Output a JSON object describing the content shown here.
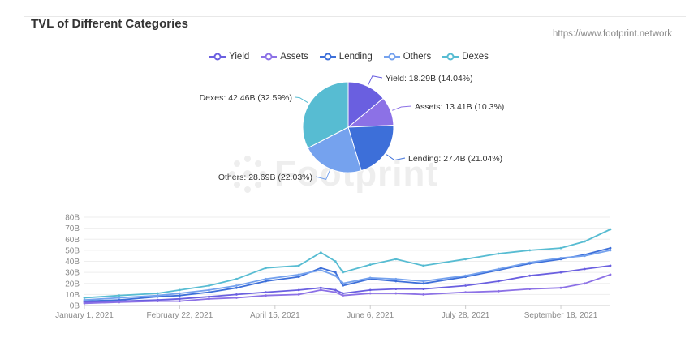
{
  "header": {
    "title": "TVL of Different Categories",
    "source": "https://www.footprint.network"
  },
  "watermark": {
    "text": "Footprint"
  },
  "chart_data": [
    {
      "type": "pie",
      "legend_position": "top-center",
      "slices": [
        {
          "name": "Yield",
          "value": 18.29,
          "label": "Yield: 18.29B (14.04%)",
          "color": "#6a5fe0"
        },
        {
          "name": "Assets",
          "value": 13.41,
          "label": "Assets: 13.41B (10.3%)",
          "color": "#8c71e6"
        },
        {
          "name": "Lending",
          "value": 27.4,
          "label": "Lending: 27.4B (21.04%)",
          "color": "#3d6fd9"
        },
        {
          "name": "Others",
          "value": 28.69,
          "label": "Others: 28.69B (22.03%)",
          "color": "#75a2ee"
        },
        {
          "name": "Dexes",
          "value": 42.46,
          "label": "Dexes: 42.46B (32.59%)",
          "color": "#57bcd2"
        }
      ]
    },
    {
      "type": "line",
      "x_start": "2021-01-01",
      "x_end": "2021-10-15",
      "x_ticks": [
        {
          "date": "2021-01-01",
          "label": "January 1, 2021"
        },
        {
          "date": "2021-02-22",
          "label": "February 22, 2021"
        },
        {
          "date": "2021-04-15",
          "label": "April 15, 2021"
        },
        {
          "date": "2021-06-06",
          "label": "June 6, 2021"
        },
        {
          "date": "2021-07-28",
          "label": "July 28, 2021"
        },
        {
          "date": "2021-09-18",
          "label": "September 18, 2021"
        }
      ],
      "y_ticks": [
        "0B",
        "10B",
        "20B",
        "30B",
        "40B",
        "50B",
        "60B",
        "70B",
        "80B"
      ],
      "ylim": [
        0,
        80
      ],
      "grid": true,
      "series": [
        {
          "name": "Dexes",
          "color": "#57bcd2",
          "points": [
            [
              "2021-01-01",
              7
            ],
            [
              "2021-01-20",
              9
            ],
            [
              "2021-02-10",
              11
            ],
            [
              "2021-02-22",
              14
            ],
            [
              "2021-03-10",
              18
            ],
            [
              "2021-03-25",
              24
            ],
            [
              "2021-04-10",
              34
            ],
            [
              "2021-04-28",
              36
            ],
            [
              "2021-05-10",
              48
            ],
            [
              "2021-05-18",
              40
            ],
            [
              "2021-05-22",
              30
            ],
            [
              "2021-06-06",
              37
            ],
            [
              "2021-06-20",
              42
            ],
            [
              "2021-07-05",
              36
            ],
            [
              "2021-07-28",
              42
            ],
            [
              "2021-08-15",
              47
            ],
            [
              "2021-09-01",
              50
            ],
            [
              "2021-09-18",
              52
            ],
            [
              "2021-10-01",
              58
            ],
            [
              "2021-10-15",
              69
            ]
          ]
        },
        {
          "name": "Lending",
          "color": "#3d6fd9",
          "points": [
            [
              "2021-01-01",
              4
            ],
            [
              "2021-01-20",
              5
            ],
            [
              "2021-02-10",
              8
            ],
            [
              "2021-02-22",
              9
            ],
            [
              "2021-03-10",
              12
            ],
            [
              "2021-03-25",
              16
            ],
            [
              "2021-04-10",
              22
            ],
            [
              "2021-04-28",
              26
            ],
            [
              "2021-05-10",
              34
            ],
            [
              "2021-05-18",
              30
            ],
            [
              "2021-05-22",
              18
            ],
            [
              "2021-06-06",
              24
            ],
            [
              "2021-06-20",
              22
            ],
            [
              "2021-07-05",
              20
            ],
            [
              "2021-07-28",
              26
            ],
            [
              "2021-08-15",
              32
            ],
            [
              "2021-09-01",
              38
            ],
            [
              "2021-09-18",
              42
            ],
            [
              "2021-10-01",
              46
            ],
            [
              "2021-10-15",
              52
            ]
          ]
        },
        {
          "name": "Others",
          "color": "#75a2ee",
          "points": [
            [
              "2021-01-01",
              5
            ],
            [
              "2021-01-20",
              7
            ],
            [
              "2021-02-10",
              9
            ],
            [
              "2021-02-22",
              11
            ],
            [
              "2021-03-10",
              14
            ],
            [
              "2021-03-25",
              18
            ],
            [
              "2021-04-10",
              24
            ],
            [
              "2021-04-28",
              28
            ],
            [
              "2021-05-10",
              32
            ],
            [
              "2021-05-18",
              27
            ],
            [
              "2021-05-22",
              20
            ],
            [
              "2021-06-06",
              25
            ],
            [
              "2021-06-20",
              24
            ],
            [
              "2021-07-05",
              22
            ],
            [
              "2021-07-28",
              27
            ],
            [
              "2021-08-15",
              33
            ],
            [
              "2021-09-01",
              39
            ],
            [
              "2021-09-18",
              43
            ],
            [
              "2021-10-01",
              45
            ],
            [
              "2021-10-15",
              50
            ]
          ]
        },
        {
          "name": "Yield",
          "color": "#6a5fe0",
          "points": [
            [
              "2021-01-01",
              3
            ],
            [
              "2021-01-20",
              4
            ],
            [
              "2021-02-10",
              5
            ],
            [
              "2021-02-22",
              6
            ],
            [
              "2021-03-10",
              8
            ],
            [
              "2021-03-25",
              10
            ],
            [
              "2021-04-10",
              12
            ],
            [
              "2021-04-28",
              14
            ],
            [
              "2021-05-10",
              16
            ],
            [
              "2021-05-18",
              14
            ],
            [
              "2021-05-22",
              11
            ],
            [
              "2021-06-06",
              14
            ],
            [
              "2021-06-20",
              15
            ],
            [
              "2021-07-05",
              15
            ],
            [
              "2021-07-28",
              18
            ],
            [
              "2021-08-15",
              22
            ],
            [
              "2021-09-01",
              27
            ],
            [
              "2021-09-18",
              30
            ],
            [
              "2021-10-01",
              33
            ],
            [
              "2021-10-15",
              36
            ]
          ]
        },
        {
          "name": "Assets",
          "color": "#8c71e6",
          "points": [
            [
              "2021-01-01",
              2
            ],
            [
              "2021-01-20",
              3
            ],
            [
              "2021-02-10",
              4
            ],
            [
              "2021-02-22",
              4
            ],
            [
              "2021-03-10",
              6
            ],
            [
              "2021-03-25",
              7
            ],
            [
              "2021-04-10",
              9
            ],
            [
              "2021-04-28",
              10
            ],
            [
              "2021-05-10",
              14
            ],
            [
              "2021-05-18",
              12
            ],
            [
              "2021-05-22",
              9
            ],
            [
              "2021-06-06",
              11
            ],
            [
              "2021-06-20",
              11
            ],
            [
              "2021-07-05",
              10
            ],
            [
              "2021-07-28",
              12
            ],
            [
              "2021-08-15",
              13
            ],
            [
              "2021-09-01",
              15
            ],
            [
              "2021-09-18",
              16
            ],
            [
              "2021-10-01",
              20
            ],
            [
              "2021-10-15",
              28
            ]
          ]
        }
      ]
    }
  ]
}
